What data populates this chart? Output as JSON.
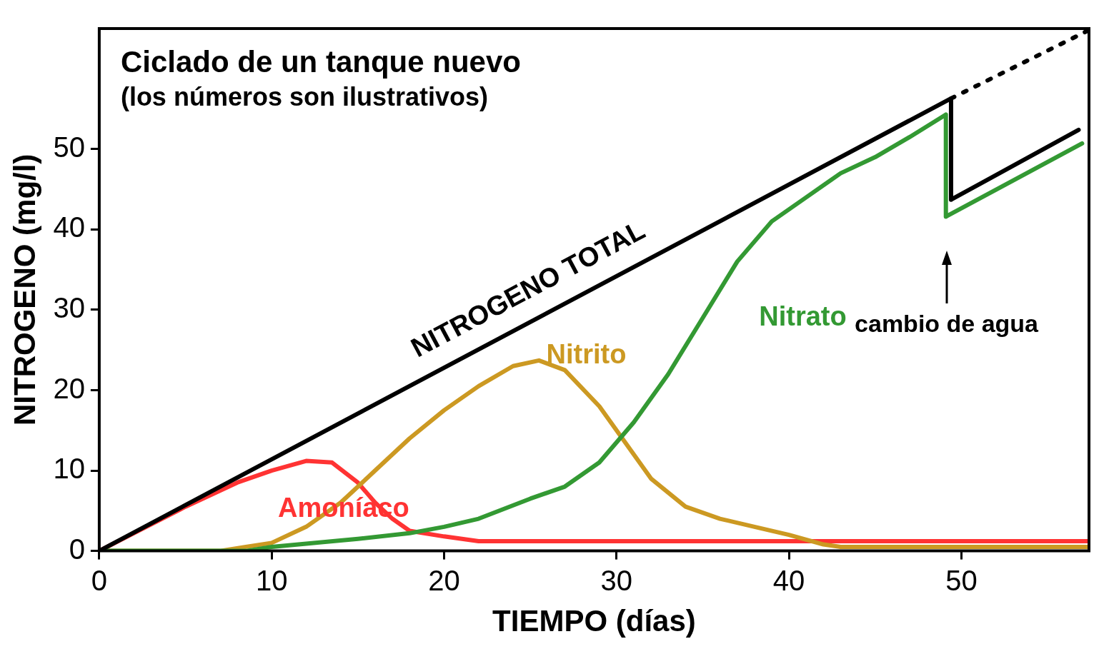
{
  "chart_data": {
    "type": "line",
    "title": "Ciclado de un tanque nuevo",
    "subtitle": "(los números son ilustrativos)",
    "xlabel": "TIEMPO (días)",
    "ylabel": "NITROGENO (mg/l)",
    "xlim": [
      0,
      57.4
    ],
    "ylim": [
      0,
      65
    ],
    "xticks": [
      0,
      10,
      20,
      30,
      40,
      50
    ],
    "yticks": [
      0,
      10,
      20,
      30,
      40,
      50
    ],
    "grid": false,
    "legend": false,
    "marker": "none",
    "line_style": "solid",
    "series": [
      {
        "name": "NITROGENO TOTAL",
        "color": "#000000",
        "x": [
          0,
          49.4,
          49.4,
          56.8
        ],
        "values": [
          0,
          56.3,
          43.7,
          52.4
        ]
      },
      {
        "color": "#000000",
        "line_style": "dotted",
        "x": [
          49.4,
          57.3
        ],
        "values": [
          56.3,
          64.7
        ]
      },
      {
        "name": "Nitrato",
        "color": "#339933",
        "x": [
          0,
          8.5,
          10,
          12,
          15,
          18,
          20,
          22,
          25,
          27,
          29,
          31,
          33,
          35,
          37,
          39,
          41,
          43,
          45,
          47,
          49.1,
          49.1,
          57
        ],
        "values": [
          0,
          0,
          0.5,
          0.9,
          1.5,
          2.2,
          3,
          4,
          6.5,
          8,
          11,
          16,
          22,
          29,
          36,
          41,
          44,
          47,
          49,
          51.5,
          54.3,
          41.6,
          50.7
        ]
      },
      {
        "name": "Nitrito",
        "color": "#cc9922",
        "x": [
          0,
          7,
          10,
          12,
          14,
          16,
          18,
          20,
          22,
          24,
          25.5,
          27,
          29,
          30,
          32,
          34,
          36,
          38,
          40,
          42,
          43,
          57.4
        ],
        "values": [
          0,
          0,
          1,
          3,
          6,
          10,
          14,
          17.5,
          20.5,
          23,
          23.7,
          22.5,
          18,
          15,
          9,
          5.5,
          4,
          3,
          2,
          0.8,
          0.5,
          0.5
        ]
      },
      {
        "name": "Amoníaco",
        "color": "#ff3333",
        "x": [
          0,
          2,
          5,
          8,
          10,
          12,
          13.5,
          15,
          16,
          17,
          18,
          20,
          22,
          57.4
        ],
        "values": [
          0,
          2.2,
          5.5,
          8.5,
          10,
          11.2,
          11,
          8.5,
          6,
          4,
          2.5,
          1.8,
          1.2,
          1.2
        ]
      }
    ],
    "annotations": [
      "cambio de agua"
    ]
  }
}
